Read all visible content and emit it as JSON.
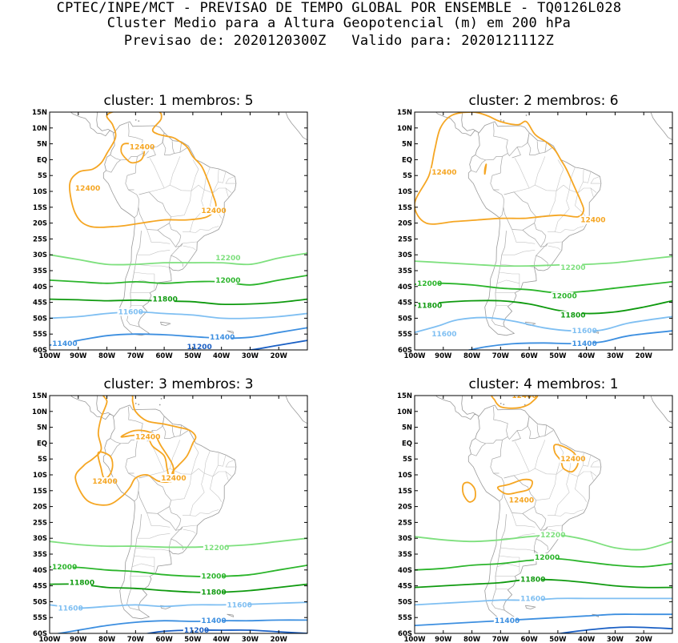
{
  "header": {
    "line1": "CPTEC/INPE/MCT - PREVISAO DE TEMPO GLOBAL POR ENSEMBLE - TQ0126L028",
    "line2": "Cluster Medio para a Altura Geopotencial (m) em 200 hPa",
    "line3": "Previsao de: 2020120300Z   Valido para: 2020121112Z"
  },
  "colors": {
    "c12400": "#f5a623",
    "c12200": "#7ee07e",
    "c12000": "#2cb52c",
    "c11800": "#0f9a0f",
    "c11600": "#7fbff2",
    "c11400": "#3d8fe0",
    "c11200": "#1a5fc4",
    "coast": "#9a9a9a"
  },
  "lat_ticks": [
    "15N",
    "10N",
    "5N",
    "EQ",
    "5S",
    "10S",
    "15S",
    "20S",
    "25S",
    "30S",
    "35S",
    "40S",
    "45S",
    "50S",
    "55S",
    "60S"
  ],
  "lon_ticks": [
    "100W",
    "90W",
    "80W",
    "70W",
    "60W",
    "50W",
    "40W",
    "30W",
    "20W"
  ],
  "panels": [
    {
      "title": "cluster: 1   membros: 5",
      "labels": [
        {
          "text": "12400",
          "lon": -69,
          "lat": 4
        },
        {
          "text": "12400",
          "lon": -88,
          "lat": -9
        },
        {
          "text": "12400",
          "lon": -44,
          "lat": -16
        },
        {
          "text": "12200",
          "lon": -39,
          "lat": -31
        },
        {
          "text": "12000",
          "lon": -39,
          "lat": -38
        },
        {
          "text": "11800",
          "lon": -61,
          "lat": -44
        },
        {
          "text": "11600",
          "lon": -73,
          "lat": -48
        },
        {
          "text": "11400",
          "lon": -96,
          "lat": -58
        },
        {
          "text": "11400",
          "lon": -41,
          "lat": -56
        },
        {
          "text": "11200",
          "lon": -49,
          "lat": -60
        }
      ]
    },
    {
      "title": "cluster: 2   membros: 6",
      "labels": [
        {
          "text": "12400",
          "lon": -91,
          "lat": -4
        },
        {
          "text": "12400",
          "lon": -39,
          "lat": -19
        },
        {
          "text": "12200",
          "lon": -46,
          "lat": -34
        },
        {
          "text": "12000",
          "lon": -97,
          "lat": -39
        },
        {
          "text": "12000",
          "lon": -49,
          "lat": -43
        },
        {
          "text": "11800",
          "lon": -97,
          "lat": -46
        },
        {
          "text": "11800",
          "lon": -46,
          "lat": -49
        },
        {
          "text": "11600",
          "lon": -91,
          "lat": -55
        },
        {
          "text": "11600",
          "lon": -42,
          "lat": -54
        },
        {
          "text": "11400",
          "lon": -42,
          "lat": -58
        }
      ]
    },
    {
      "title": "cluster: 3   membros: 3",
      "labels": [
        {
          "text": "12400",
          "lon": -67,
          "lat": 2
        },
        {
          "text": "12400",
          "lon": -82,
          "lat": -12
        },
        {
          "text": "12400",
          "lon": -58,
          "lat": -11
        },
        {
          "text": "12200",
          "lon": -43,
          "lat": -33
        },
        {
          "text": "12000",
          "lon": -102,
          "lat": -39
        },
        {
          "text": "12000",
          "lon": -44,
          "lat": -42
        },
        {
          "text": "11800",
          "lon": -90,
          "lat": -44
        },
        {
          "text": "11800",
          "lon": -44,
          "lat": -47
        },
        {
          "text": "11600",
          "lon": -94,
          "lat": -52
        },
        {
          "text": "11600",
          "lon": -35,
          "lat": -51
        },
        {
          "text": "11400",
          "lon": -44,
          "lat": -56
        },
        {
          "text": "11200",
          "lon": -50,
          "lat": -59
        }
      ]
    },
    {
      "title": "cluster: 4   membros: 1",
      "labels": [
        {
          "text": "12400",
          "lon": -63,
          "lat": 15
        },
        {
          "text": "12400",
          "lon": -46,
          "lat": -5
        },
        {
          "text": "12400",
          "lon": -64,
          "lat": -18
        },
        {
          "text": "12200",
          "lon": -53,
          "lat": -29
        },
        {
          "text": "12000",
          "lon": -55,
          "lat": -36
        },
        {
          "text": "11800",
          "lon": -60,
          "lat": -43
        },
        {
          "text": "11600",
          "lon": -60,
          "lat": -49
        },
        {
          "text": "11400",
          "lon": -69,
          "lat": -56
        }
      ]
    }
  ]
}
